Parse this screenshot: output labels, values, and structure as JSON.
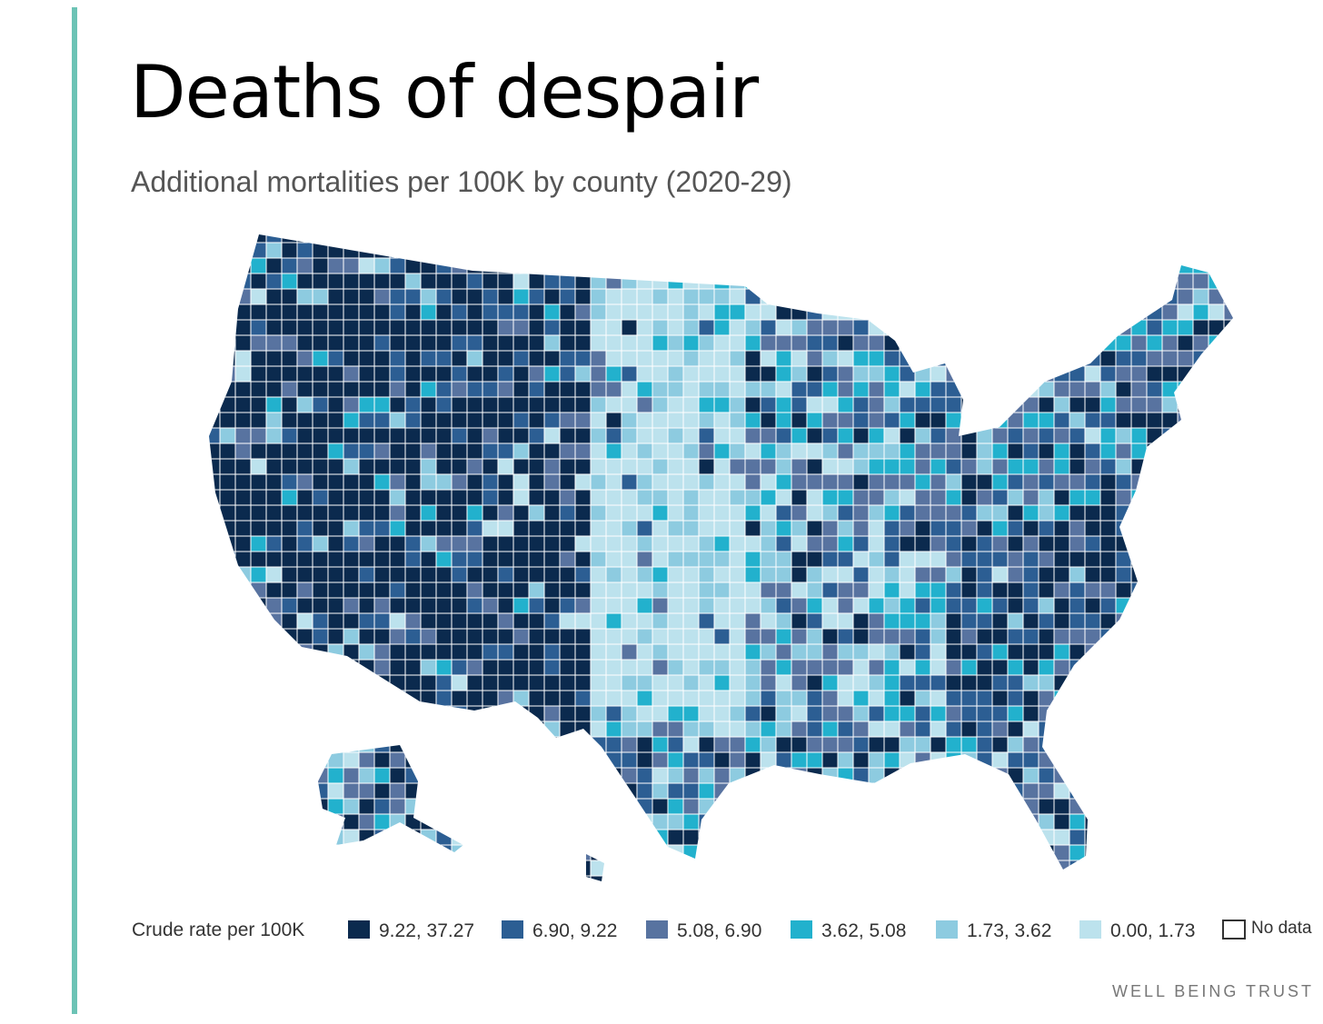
{
  "map": {
    "title": "Deaths of despair",
    "subtitle": "Additional mortalities per 100K by county (2020-29)",
    "legend": {
      "title": "Crude rate per 100K",
      "items": [
        {
          "label": "9.22, 37.27",
          "color": "#0b2a4e"
        },
        {
          "label": "6.90, 9.22",
          "color": "#2c5e93"
        },
        {
          "label": "5.08, 6.90",
          "color": "#5873a0"
        },
        {
          "label": "3.62, 5.08",
          "color": "#22b1cd"
        },
        {
          "label": "1.73, 3.62",
          "color": "#8dcbe0"
        },
        {
          "label": "0.00, 1.73",
          "color": "#bce2ed"
        }
      ],
      "no_data": "No data"
    },
    "credit": "WELL BEING TRUST"
  }
}
